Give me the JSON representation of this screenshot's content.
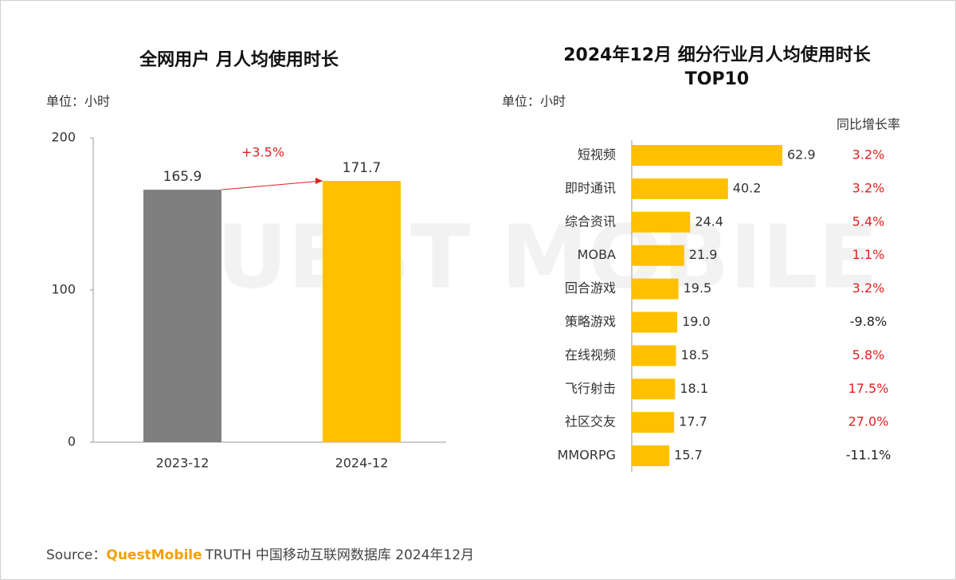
{
  "watermark": "QUEST MOBILE",
  "chart_data": [
    {
      "type": "bar",
      "title": "全网用户 月人均使用时长",
      "unit_label": "单位：小时",
      "categories": [
        "2023-12",
        "2024-12"
      ],
      "values": [
        165.9,
        171.7
      ],
      "colors": [
        "#7f7f7f",
        "#ffc000"
      ],
      "ylim": [
        0,
        200
      ],
      "yticks": [
        0,
        100,
        200
      ],
      "annotation": "+3.5%",
      "annotation_color": "#e02020"
    },
    {
      "type": "hbar",
      "title": [
        "2024年12月 细分行业月人均使用时长",
        "TOP10"
      ],
      "unit_label": "单位：小时",
      "categories": [
        "短视频",
        "即时通讯",
        "综合资讯",
        "MOBA",
        "回合游戏",
        "策略游戏",
        "在线视频",
        "飞行射击",
        "社区交友",
        "MMORPG"
      ],
      "values": [
        62.9,
        40.2,
        24.4,
        21.9,
        19.5,
        19.0,
        18.5,
        18.1,
        17.7,
        15.7
      ],
      "value_labels": [
        "62.9",
        "40.2",
        "24.4",
        "21.9",
        "19.5",
        "19.0",
        "18.5",
        "18.1",
        "17.7",
        "15.7"
      ],
      "color": "#ffc000",
      "growth": {
        "name": "同比增长率",
        "values": [
          3.2,
          3.2,
          5.4,
          1.1,
          3.2,
          -9.8,
          5.8,
          17.5,
          27.0,
          -11.1
        ],
        "value_labels": [
          "3.2%",
          "3.2%",
          "5.4%",
          "1.1%",
          "3.2%",
          "-9.8%",
          "5.8%",
          "17.5%",
          "27.0%",
          "-11.1%"
        ],
        "positive_color": "#e02020",
        "negative_color": "#222222"
      }
    }
  ],
  "footer": {
    "prefix": "Source：",
    "brand": "QuestMobile",
    "text": "TRUTH 中国移动互联网数据库 2024年12月"
  }
}
